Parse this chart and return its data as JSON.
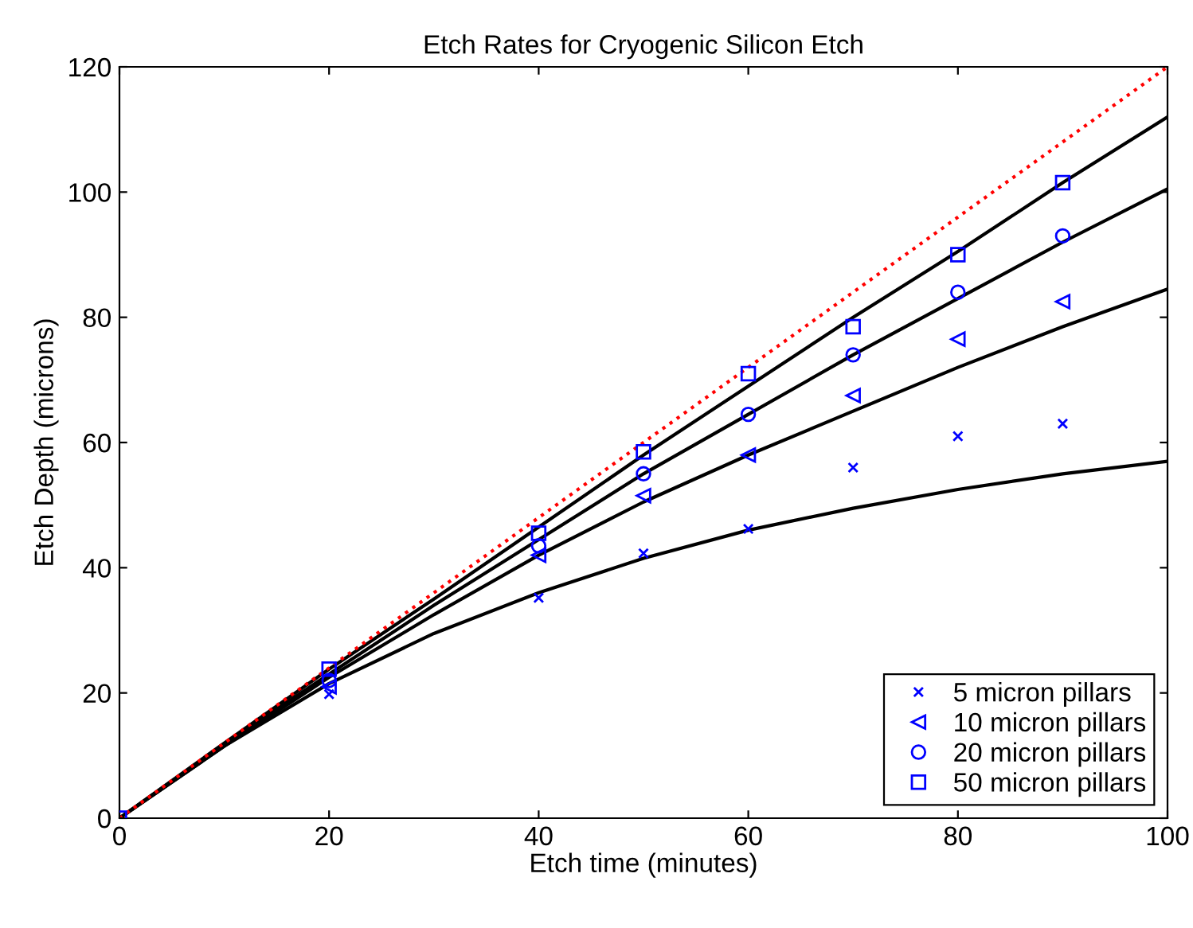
{
  "chart_data": {
    "type": "scatter",
    "title": "Etch Rates for Cryogenic Silicon Etch",
    "xlabel": "Etch time (minutes)",
    "ylabel": "Etch Depth (microns)",
    "xlim": [
      0,
      100
    ],
    "ylim": [
      0,
      120
    ],
    "xticks": [
      0,
      20,
      40,
      60,
      80,
      100
    ],
    "yticks": [
      0,
      20,
      40,
      60,
      80,
      100,
      120
    ],
    "grid": false,
    "legend": "bottom right",
    "series": [
      {
        "name": "5 micron pillars",
        "marker": "cross",
        "color": "#0000ff",
        "x": [
          20,
          40,
          50,
          60,
          70,
          80,
          90
        ],
        "values": [
          19.8,
          35.2,
          42.3,
          46.2,
          56,
          61,
          63
        ]
      },
      {
        "name": "10 micron pillars",
        "marker": "triangle",
        "color": "#0000ff",
        "x": [
          20,
          40,
          50,
          60,
          70,
          80,
          90
        ],
        "values": [
          21,
          42,
          51.5,
          58,
          67.5,
          76.5,
          82.5
        ]
      },
      {
        "name": "20 micron pillars",
        "marker": "circle",
        "color": "#0000ff",
        "x": [
          20,
          40,
          50,
          60,
          70,
          80,
          90
        ],
        "values": [
          22,
          43.5,
          55,
          64.5,
          74,
          84,
          93
        ]
      },
      {
        "name": "50 micron pillars",
        "marker": "square",
        "color": "#0000ff",
        "x": [
          0,
          20,
          40,
          50,
          60,
          70,
          80,
          90
        ],
        "values": [
          0,
          23.8,
          45.5,
          58.5,
          71,
          78.5,
          90,
          101.5
        ]
      },
      {
        "type": "line",
        "line_style": "solid",
        "color": "#000000",
        "x": [
          0,
          10,
          20,
          30,
          40,
          50,
          60,
          70,
          80,
          90,
          100
        ],
        "values": [
          0,
          11.5,
          21.5,
          29.5,
          36,
          41.5,
          46,
          49.5,
          52.5,
          55,
          57
        ]
      },
      {
        "type": "line",
        "line_style": "solid",
        "color": "#000000",
        "x": [
          0,
          10,
          20,
          30,
          40,
          50,
          60,
          70,
          80,
          90,
          100
        ],
        "values": [
          0,
          11.5,
          22.5,
          32.5,
          42,
          50.5,
          58,
          65,
          72,
          78.5,
          84.5
        ]
      },
      {
        "type": "line",
        "line_style": "solid",
        "color": "#000000",
        "x": [
          0,
          10,
          20,
          30,
          40,
          50,
          60,
          70,
          80,
          90,
          100
        ],
        "values": [
          0,
          11.8,
          23,
          34,
          44.5,
          55,
          64.5,
          74,
          83,
          92,
          100.5
        ]
      },
      {
        "type": "line",
        "line_style": "solid",
        "color": "#000000",
        "x": [
          0,
          10,
          20,
          30,
          40,
          50,
          60,
          70,
          80,
          90,
          100
        ],
        "values": [
          0,
          12,
          23.8,
          35,
          46.5,
          58,
          69,
          80,
          90.5,
          101.5,
          112
        ]
      },
      {
        "type": "line",
        "line_style": "dotted",
        "color": "#ff0000",
        "x": [
          0,
          100
        ],
        "values": [
          0,
          120
        ]
      }
    ]
  }
}
